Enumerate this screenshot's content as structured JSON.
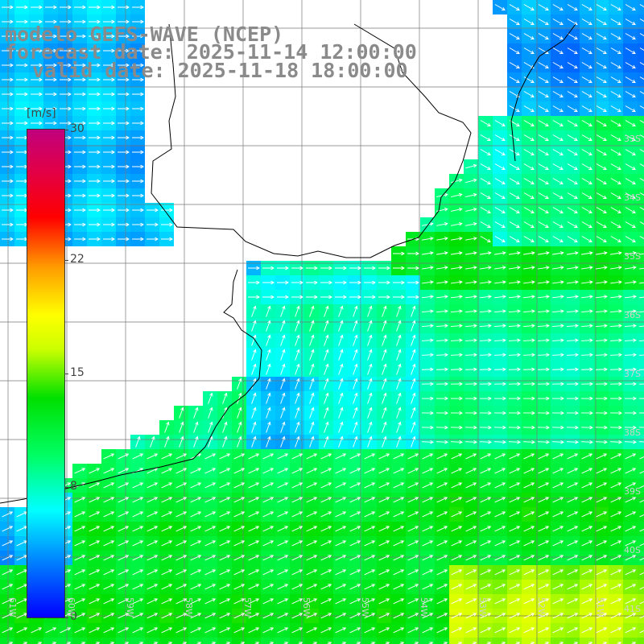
{
  "title": {
    "line1": "modelo GEFS-WAVE (NCEP)",
    "line2": "forecast date: 2025-11-14 12:00:00",
    "line3": "valid date: 2025-11-18 18:00:00"
  },
  "colorbar": {
    "unit": "[m/s]",
    "ticks": [
      {
        "label": "30",
        "value": 30
      },
      {
        "label": "22",
        "value": 22
      },
      {
        "label": "15",
        "value": 15
      },
      {
        "label": "8",
        "value": 8
      },
      {
        "label": "0",
        "value": 0
      }
    ],
    "range": [
      0,
      30
    ],
    "colors": [
      "#0000ff",
      "#0088ff",
      "#00ffff",
      "#00ff66",
      "#00e000",
      "#ccff00",
      "#ffff00",
      "#ff9900",
      "#ff0000",
      "#e0004a",
      "#c0007e"
    ]
  },
  "grid": {
    "lat_labels": [
      "33S",
      "34S",
      "35S",
      "36S",
      "37S",
      "38S",
      "39S",
      "40S",
      "41S"
    ],
    "lon_labels": [
      "61W",
      "60W",
      "59W",
      "58W",
      "57W",
      "56W",
      "55W",
      "54W",
      "53W",
      "52W",
      "51W"
    ]
  }
}
